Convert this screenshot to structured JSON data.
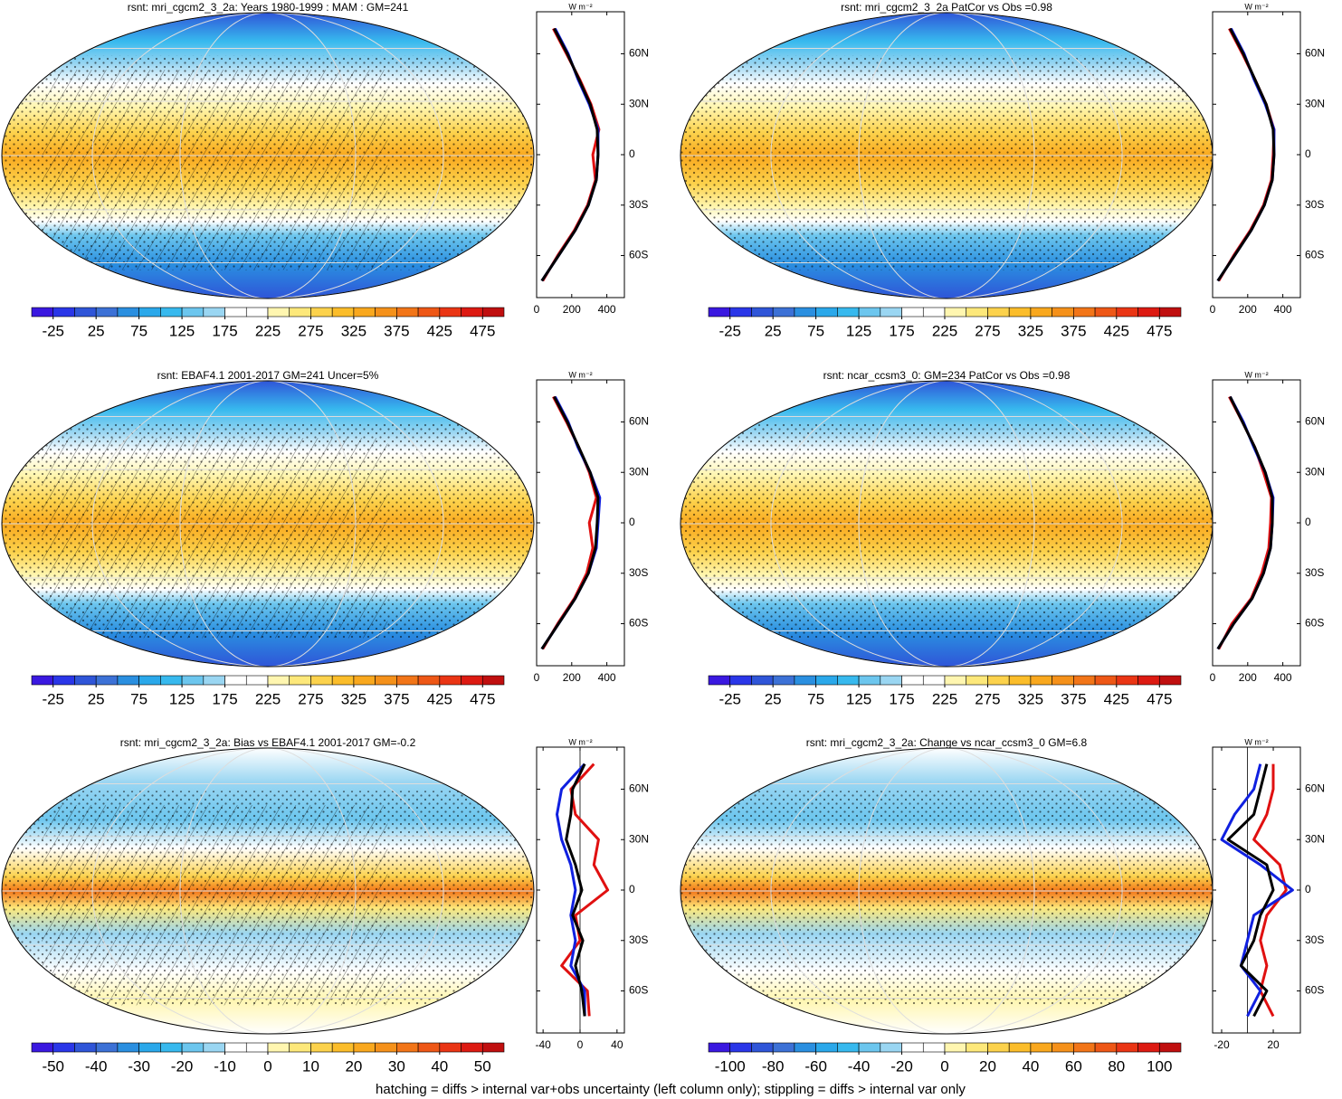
{
  "colorbar_colors": [
    "#3a18e0",
    "#2a36e8",
    "#2f55d8",
    "#3c71d6",
    "#2a8fe0",
    "#2aa8ea",
    "#37b9ee",
    "#6cc6ee",
    "#9ad6f2",
    "#ffffff",
    "#ffffff",
    "#fff6b0",
    "#fde87a",
    "#fcd24c",
    "#fbbd2a",
    "#f9a81e",
    "#f5911a",
    "#f27518",
    "#ee5716",
    "#ea3514",
    "#dd1a12",
    "#c00f0f"
  ],
  "panels": [
    {
      "title": "rsnt: mri_cgcm2_3_2a: Years 1980-1999 : MAM : GM=241",
      "colorbar": {
        "lim": [
          -50,
          500
        ],
        "ticks": [
          -25,
          25,
          75,
          125,
          175,
          225,
          275,
          325,
          375,
          425,
          475
        ]
      },
      "profile": {
        "units": "W m⁻²",
        "ylim": [
          -85,
          85
        ],
        "yticks": [
          {
            "value": -60,
            "label": "60S"
          },
          {
            "value": -30,
            "label": "30S"
          },
          0,
          {
            "value": 30,
            "label": "30N"
          },
          {
            "value": 60,
            "label": "60N"
          }
        ],
        "xlim": [
          0,
          500
        ],
        "xticks": [
          0,
          200,
          400
        ],
        "lats": [
          -75,
          -60,
          -45,
          -30,
          -15,
          0,
          15,
          30,
          45,
          60,
          75
        ],
        "series": [
          {
            "color": "#e01010",
            "values": [
              35,
              120,
              215,
              290,
              335,
              320,
              355,
              310,
              245,
              170,
              95
            ]
          },
          {
            "color": "#1020e0",
            "values": [
              30,
              125,
              220,
              295,
              340,
              350,
              350,
              300,
              235,
              180,
              105
            ]
          },
          {
            "color": "#000000",
            "values": [
              30,
              125,
              220,
              295,
              340,
              350,
              345,
              305,
              240,
              175,
              100
            ]
          }
        ]
      }
    },
    {
      "title": "rsnt: mri_cgcm2_3_2a PatCor vs Obs =0.98",
      "colorbar": {
        "lim": [
          -50,
          500
        ],
        "ticks": [
          -25,
          25,
          75,
          125,
          175,
          225,
          275,
          325,
          375,
          425,
          475
        ]
      },
      "profile": {
        "units": "W m⁻²",
        "ylim": [
          -85,
          85
        ],
        "yticks": [
          {
            "value": -60,
            "label": "60S"
          },
          {
            "value": -30,
            "label": "30S"
          },
          0,
          {
            "value": 30,
            "label": "30N"
          },
          {
            "value": 60,
            "label": "60N"
          }
        ],
        "xlim": [
          0,
          500
        ],
        "xticks": [
          0,
          200,
          400
        ],
        "lats": [
          -75,
          -60,
          -45,
          -30,
          -15,
          0,
          15,
          30,
          45,
          60,
          75
        ],
        "series": [
          {
            "color": "#e01010",
            "values": [
              35,
              120,
              215,
              290,
              335,
              345,
              350,
              305,
              240,
              170,
              95
            ]
          },
          {
            "color": "#1020e0",
            "values": [
              30,
              125,
              220,
              295,
              340,
              350,
              350,
              300,
              235,
              180,
              105
            ]
          },
          {
            "color": "#000000",
            "values": [
              30,
              125,
              220,
              295,
              340,
              350,
              345,
              305,
              240,
              175,
              100
            ]
          }
        ]
      }
    },
    {
      "title": "rsnt: EBAF4.1 2001-2017 GM=241 Uncer=5%",
      "colorbar": {
        "lim": [
          -50,
          500
        ],
        "ticks": [
          -25,
          25,
          75,
          125,
          175,
          225,
          275,
          325,
          375,
          425,
          475
        ]
      },
      "profile": {
        "units": "W m⁻²",
        "ylim": [
          -85,
          85
        ],
        "yticks": [
          {
            "value": -60,
            "label": "60S"
          },
          {
            "value": -30,
            "label": "30S"
          },
          0,
          {
            "value": 30,
            "label": "30N"
          },
          {
            "value": 60,
            "label": "60N"
          }
        ],
        "xlim": [
          0,
          500
        ],
        "xticks": [
          0,
          200,
          400
        ],
        "lats": [
          -75,
          -60,
          -45,
          -30,
          -15,
          0,
          15,
          30,
          45,
          60,
          75
        ],
        "series": [
          {
            "color": "#e01010",
            "values": [
              35,
              120,
              215,
              285,
              320,
              300,
              340,
              300,
              240,
              170,
              95
            ]
          },
          {
            "color": "#1020e0",
            "values": [
              30,
              125,
              220,
              295,
              340,
              350,
              360,
              305,
              235,
              180,
              105
            ]
          },
          {
            "color": "#000000",
            "values": [
              30,
              125,
              220,
              295,
              335,
              345,
              350,
              305,
              240,
              175,
              100
            ]
          }
        ]
      }
    },
    {
      "title": "rsnt: ncar_ccsm3_0: GM=234 PatCor vs Obs =0.98",
      "colorbar": {
        "lim": [
          -50,
          500
        ],
        "ticks": [
          -25,
          25,
          75,
          125,
          175,
          225,
          275,
          325,
          375,
          425,
          475
        ]
      },
      "profile": {
        "units": "W m⁻²",
        "ylim": [
          -85,
          85
        ],
        "yticks": [
          {
            "value": -60,
            "label": "60S"
          },
          {
            "value": -30,
            "label": "30S"
          },
          0,
          {
            "value": 30,
            "label": "30N"
          },
          {
            "value": 60,
            "label": "60N"
          }
        ],
        "xlim": [
          0,
          500
        ],
        "xticks": [
          0,
          200,
          400
        ],
        "lats": [
          -75,
          -60,
          -45,
          -30,
          -15,
          0,
          15,
          30,
          45,
          60,
          75
        ],
        "series": [
          {
            "color": "#e01010",
            "values": [
              35,
              110,
              220,
              280,
              320,
              330,
              335,
              290,
              240,
              170,
              95
            ]
          },
          {
            "color": "#1020e0",
            "values": [
              30,
              120,
              225,
              290,
              330,
              340,
              345,
              300,
              235,
              175,
              100
            ]
          },
          {
            "color": "#000000",
            "values": [
              30,
              120,
              225,
              290,
              330,
              340,
              340,
              300,
              240,
              170,
              100
            ]
          }
        ]
      }
    },
    {
      "title": "rsnt: mri_cgcm2_3_2a: Bias vs EBAF4.1 2001-2017 GM=-0.2",
      "colorbar": {
        "lim": [
          -55,
          55
        ],
        "ticks": [
          -50,
          -40,
          -30,
          -20,
          -10,
          0,
          10,
          20,
          30,
          40,
          50
        ]
      },
      "profile": {
        "units": "W m⁻²",
        "ylim": [
          -85,
          85
        ],
        "yticks": [
          {
            "value": -60,
            "label": "60S"
          },
          {
            "value": -30,
            "label": "30S"
          },
          0,
          {
            "value": 30,
            "label": "30N"
          },
          {
            "value": 60,
            "label": "60N"
          }
        ],
        "xlim": [
          -47,
          48
        ],
        "xticks": [
          -40,
          0,
          40
        ],
        "lats": [
          -75,
          -60,
          -45,
          -30,
          -15,
          0,
          15,
          30,
          45,
          60,
          75
        ],
        "series": [
          {
            "color": "#e01010",
            "values": [
              10,
              8,
              -20,
              0,
              -5,
              30,
              15,
              20,
              -5,
              -10,
              15
            ]
          },
          {
            "color": "#1020e0",
            "values": [
              5,
              5,
              -10,
              -5,
              -10,
              -5,
              -10,
              -20,
              -25,
              -20,
              5
            ]
          },
          {
            "color": "#000000",
            "values": [
              5,
              2,
              -5,
              3,
              -8,
              2,
              -5,
              -15,
              -10,
              -8,
              5
            ]
          }
        ]
      }
    },
    {
      "title": "rsnt: mri_cgcm2_3_2a: Change vs ncar_ccsm3_0 GM=6.8",
      "colorbar": {
        "lim": [
          -110,
          110
        ],
        "ticks": [
          -100,
          -80,
          -60,
          -40,
          -20,
          0,
          20,
          40,
          60,
          80,
          100
        ]
      },
      "profile": {
        "units": "W m⁻²",
        "ylim": [
          -85,
          85
        ],
        "yticks": [
          {
            "value": -60,
            "label": "60S"
          },
          {
            "value": -30,
            "label": "30S"
          },
          0,
          {
            "value": 30,
            "label": "30N"
          },
          {
            "value": 60,
            "label": "60N"
          }
        ],
        "xlim": [
          -27,
          41
        ],
        "xticks": [
          -20,
          20
        ],
        "lats": [
          -75,
          -60,
          -45,
          -30,
          -15,
          0,
          15,
          30,
          45,
          60,
          75
        ],
        "series": [
          {
            "color": "#e01010",
            "values": [
              20,
              10,
              15,
              10,
              15,
              30,
              25,
              5,
              15,
              20,
              20
            ]
          },
          {
            "color": "#1020e0",
            "values": [
              0,
              10,
              -5,
              0,
              5,
              35,
              10,
              -20,
              -10,
              5,
              10
            ]
          },
          {
            "color": "#000000",
            "values": [
              5,
              15,
              -5,
              5,
              10,
              20,
              15,
              -15,
              5,
              10,
              15
            ]
          }
        ]
      }
    }
  ],
  "footer": "hatching = diffs > internal var+obs uncertainty (left column only); stippling = diffs > internal var only"
}
